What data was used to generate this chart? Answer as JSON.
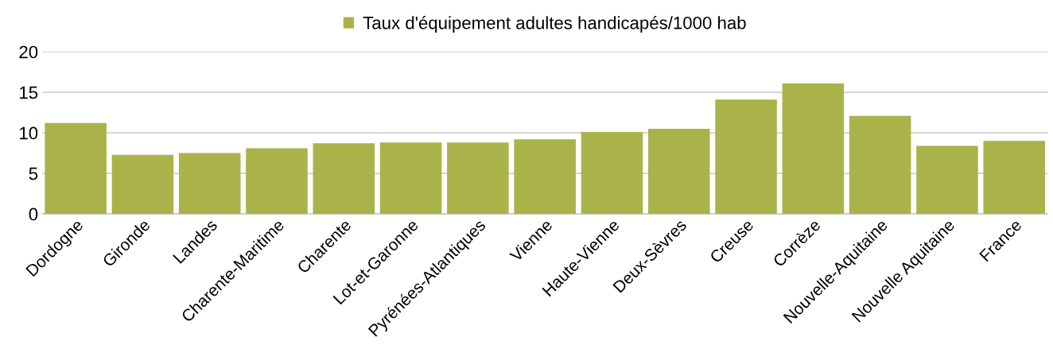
{
  "chart_data": {
    "type": "bar",
    "categories": [
      "Dordogne",
      "Gironde",
      "Landes",
      "Charente-Maritime",
      "Charente",
      "Lot-et-Garonne",
      "Pyrénées-Atlantiques",
      "Vienne",
      "Haute-Vienne",
      "Deux-Sèvres",
      "Creuse",
      "Corrèze",
      "Nouvelle-Aquitaine",
      "Nouvelle Aquitaine",
      "France"
    ],
    "series": [
      {
        "name": "Taux d'équipement adultes handicapés/1000 hab",
        "color": "#a9b34a",
        "values": [
          11.2,
          7.3,
          7.5,
          8.1,
          8.7,
          8.8,
          8.8,
          9.2,
          10.1,
          10.5,
          14.1,
          16.1,
          12.1,
          8.4,
          9.0
        ]
      }
    ],
    "ylim": [
      0,
      20
    ],
    "yticks": [
      0,
      5,
      10,
      15,
      20
    ],
    "grid": "y",
    "legend": "top"
  }
}
